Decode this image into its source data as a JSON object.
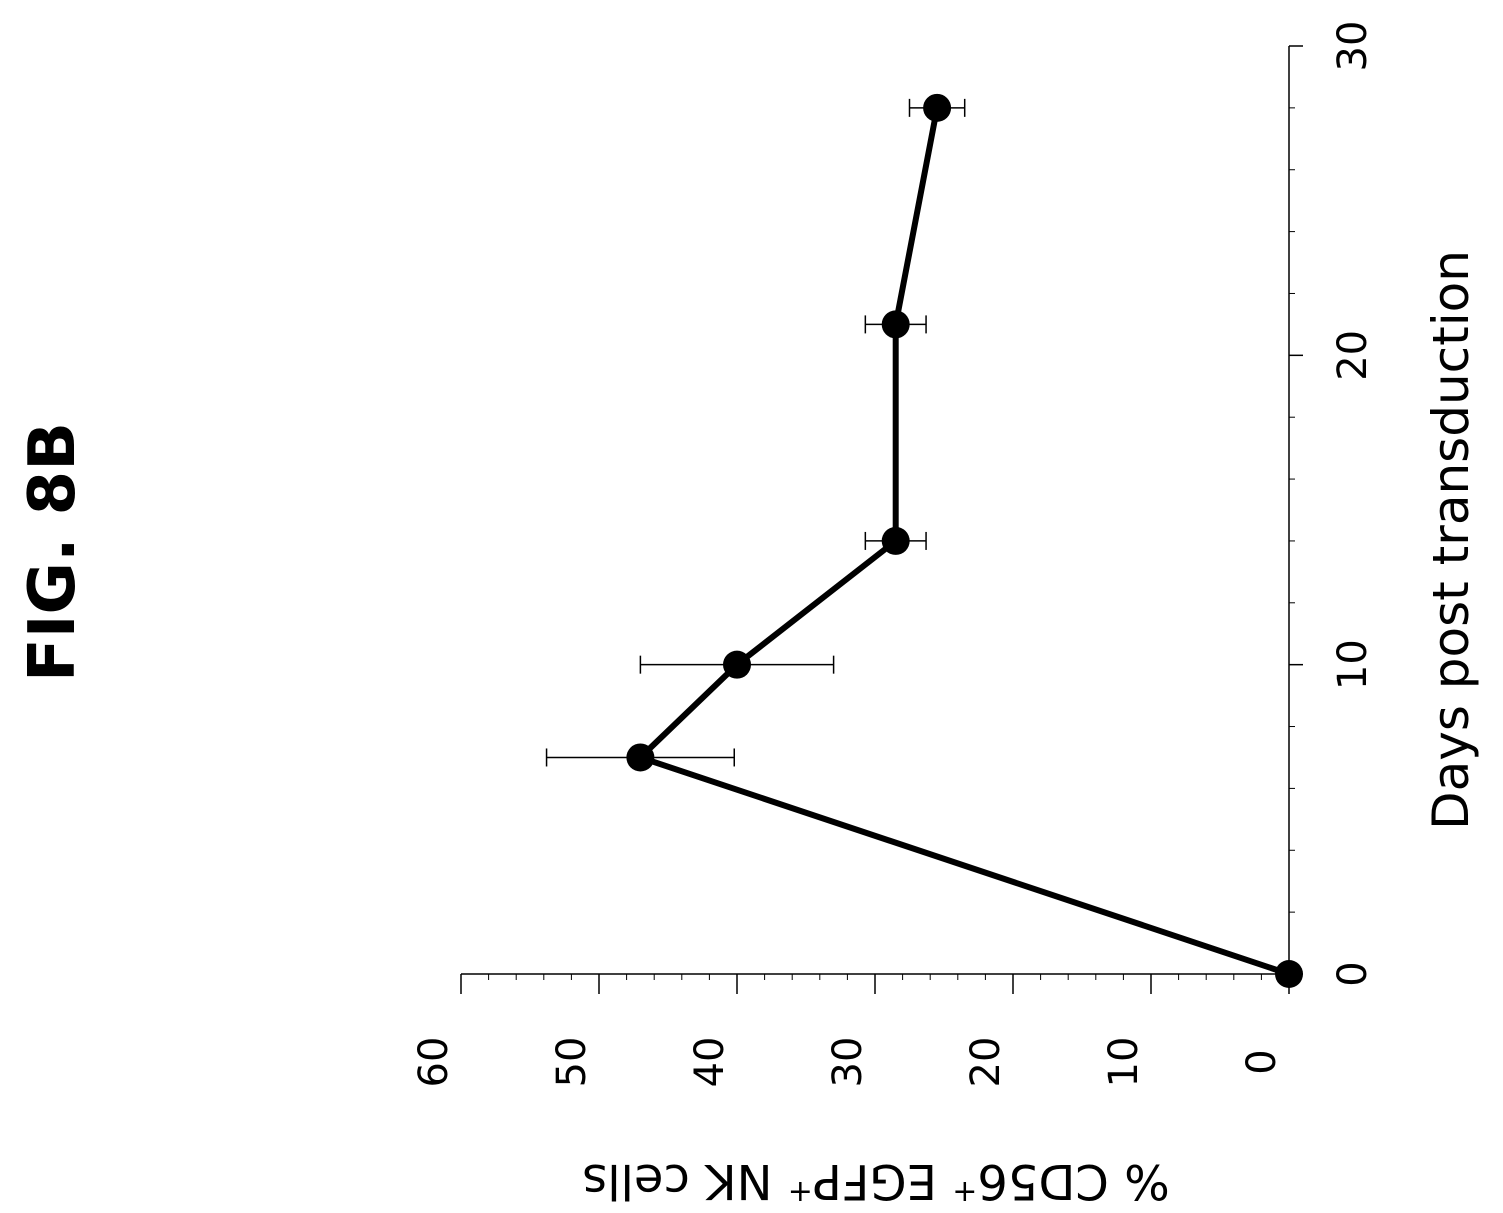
{
  "figure_label": "FIG. 8B",
  "chart_data": {
    "type": "line",
    "orientation": "rotated 90° counter-clockwise (x axis vertical on the right, y axis horizontal at the bottom)",
    "xlabel": "Days post transduction",
    "ylabel": "% CD56+ EGFP+ NK cells",
    "xlim": [
      0,
      30
    ],
    "ylim": [
      0,
      60
    ],
    "x_ticks": [
      "0",
      "10",
      "20",
      "30"
    ],
    "y_ticks": [
      "0",
      "10",
      "20",
      "30",
      "40",
      "50",
      "60"
    ],
    "series": [
      {
        "x": [
          0,
          7,
          10,
          14,
          21,
          28
        ],
        "y": [
          0,
          47,
          40,
          28.5,
          28.5,
          25.5
        ],
        "error": [
          null,
          6.8,
          7,
          2.2,
          2.2,
          2
        ]
      }
    ],
    "grid": false,
    "legend": "none",
    "color": "#000000"
  }
}
